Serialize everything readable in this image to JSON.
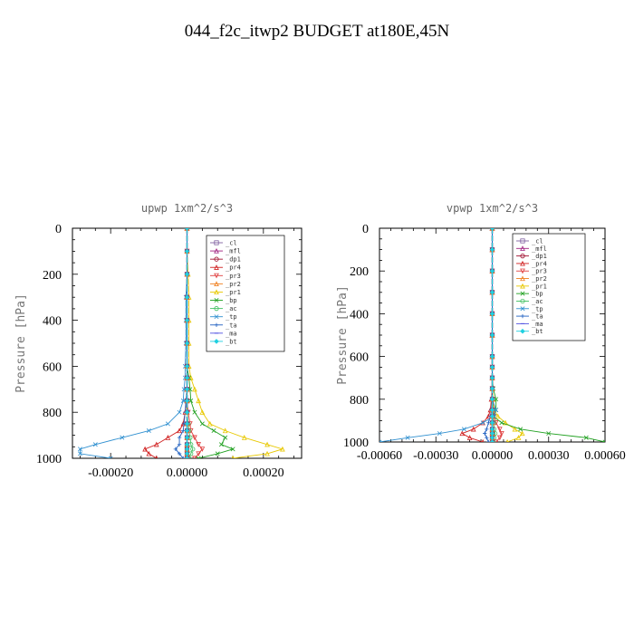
{
  "title": "044_f2c_itwp2  BUDGET at180E,45N",
  "chart_data": [
    {
      "type": "line",
      "title": "upwp   1xm^2/s^3",
      "ylabel": "Pressure [hPa]",
      "xlim": [
        -0.0003,
        0.0003
      ],
      "ylim": [
        1000,
        0
      ],
      "yticks": [
        0,
        200,
        400,
        600,
        800,
        1000
      ],
      "ytick_labels": [
        "0",
        "200",
        "400",
        "600",
        "800",
        "1000"
      ],
      "xticks": [
        -0.0002,
        0,
        0.0002
      ],
      "xtick_labels": [
        "-0.00020",
        "0.00000",
        "0.00020"
      ],
      "y": [
        0,
        100,
        200,
        300,
        400,
        500,
        600,
        650,
        700,
        750,
        800,
        850,
        880,
        910,
        940,
        960,
        980,
        1000
      ],
      "legend_position": "top-right",
      "series": [
        {
          "name": "_cl",
          "color": "#8060a0",
          "values": [
            0,
            0,
            0,
            0,
            0,
            0,
            0,
            0,
            0,
            0,
            0,
            0,
            0,
            0,
            0,
            0,
            0,
            0
          ]
        },
        {
          "name": "_mfl",
          "color": "#a02080",
          "values": [
            0,
            0,
            0,
            0,
            0,
            0,
            0,
            0,
            0,
            0,
            0,
            0,
            0,
            0,
            0,
            0,
            0,
            0
          ]
        },
        {
          "name": "_dp1",
          "color": "#a01030",
          "values": [
            0,
            0,
            0,
            0,
            0,
            0,
            0,
            0,
            0,
            0,
            0,
            0,
            0,
            0,
            0,
            0,
            0,
            0
          ]
        },
        {
          "name": "_pr4",
          "color": "#d02020",
          "values": [
            0,
            0,
            0,
            0,
            0,
            0,
            0,
            0,
            0,
            0,
            -5e-06,
            -1e-05,
            -2e-05,
            -5e-05,
            -8e-05,
            -0.00011,
            -0.0001,
            -8e-05
          ]
        },
        {
          "name": "_pr3",
          "color": "#e04040",
          "values": [
            0,
            0,
            0,
            0,
            0,
            0,
            0,
            0,
            0,
            0,
            3e-06,
            8e-06,
            1e-05,
            2e-05,
            3e-05,
            4e-05,
            3e-05,
            2e-05
          ]
        },
        {
          "name": "_pr2",
          "color": "#f08020",
          "values": [
            0,
            0,
            0,
            0,
            0,
            0,
            0,
            0,
            0,
            0,
            0,
            0,
            0,
            0,
            0,
            0,
            0,
            0
          ]
        },
        {
          "name": "_pr1",
          "color": "#e8c800",
          "values": [
            0,
            0,
            3e-06,
            5e-06,
            5e-06,
            5e-06,
            5e-06,
            1e-05,
            2e-05,
            3e-05,
            4e-05,
            6e-05,
            0.0001,
            0.00015,
            0.00021,
            0.00025,
            0.00021,
            0.00012
          ]
        },
        {
          "name": "_bp",
          "color": "#20a020",
          "values": [
            0,
            0,
            0,
            0,
            0,
            0,
            0,
            5e-06,
            8e-06,
            1e-05,
            2e-05,
            4e-05,
            7e-05,
            0.0001,
            9e-05,
            0.00012,
            8e-05,
            3e-05
          ]
        },
        {
          "name": "_ac",
          "color": "#40c060",
          "values": [
            0,
            0,
            0,
            0,
            0,
            0,
            0,
            0,
            0,
            0,
            0,
            3e-06,
            5e-06,
            8e-06,
            1e-05,
            1.5e-05,
            1e-05,
            5e-06
          ]
        },
        {
          "name": "_tp",
          "color": "#3090d0",
          "values": [
            0,
            0,
            0,
            -3e-06,
            -3e-06,
            -3e-06,
            -5e-06,
            -5e-06,
            -8e-06,
            -1e-05,
            -2e-05,
            -5e-05,
            -0.0001,
            -0.00017,
            -0.00024,
            -0.00028,
            -0.00028,
            -0.0002
          ]
        },
        {
          "name": "_ta",
          "color": "#2060c0",
          "values": [
            0,
            0,
            0,
            0,
            0,
            0,
            0,
            0,
            0,
            -3e-06,
            -5e-06,
            -8e-06,
            -1e-05,
            -2e-05,
            -2e-05,
            -3e-05,
            -2e-05,
            -1e-05
          ]
        },
        {
          "name": "_ma",
          "color": "#5050e0",
          "values": [
            0,
            0,
            0,
            0,
            0,
            0,
            0,
            0,
            0,
            0,
            0,
            0,
            0,
            0,
            0,
            0,
            0,
            0
          ]
        },
        {
          "name": "_bt",
          "color": "#20d0e0",
          "values": [
            0,
            0,
            0,
            0,
            0,
            0,
            0,
            0,
            0,
            0,
            0,
            0,
            0,
            0,
            0,
            0,
            0,
            0
          ]
        }
      ]
    },
    {
      "type": "line",
      "title": "vpwp   1xm^2/s^3",
      "ylabel": "Pressure [hPa]",
      "xlim": [
        -0.0006,
        0.0006
      ],
      "ylim": [
        1000,
        0
      ],
      "yticks": [
        0,
        200,
        400,
        600,
        800,
        1000
      ],
      "ytick_labels": [
        "0",
        "200",
        "400",
        "600",
        "800",
        "1000"
      ],
      "xticks": [
        -0.0006,
        -0.0003,
        0,
        0.0003,
        0.0006
      ],
      "xtick_labels": [
        "-0.00060",
        "-0.00030",
        "0.00000",
        "0.00030",
        "0.00060"
      ],
      "y": [
        0,
        100,
        200,
        300,
        400,
        500,
        600,
        650,
        700,
        750,
        800,
        850,
        880,
        910,
        940,
        960,
        980,
        1000
      ],
      "legend_position": "top-right",
      "series": [
        {
          "name": "_cl",
          "color": "#8060a0",
          "values": [
            0,
            0,
            0,
            0,
            0,
            0,
            0,
            0,
            0,
            0,
            0,
            0,
            0,
            0,
            0,
            0,
            0,
            0
          ]
        },
        {
          "name": "_mfl",
          "color": "#a02080",
          "values": [
            0,
            0,
            0,
            0,
            0,
            0,
            0,
            0,
            0,
            0,
            0,
            0,
            0,
            0,
            0,
            0,
            0,
            0
          ]
        },
        {
          "name": "_dp1",
          "color": "#a01030",
          "values": [
            0,
            0,
            0,
            0,
            0,
            0,
            0,
            0,
            0,
            0,
            0,
            0,
            0,
            0,
            0,
            0,
            0,
            0
          ]
        },
        {
          "name": "_pr4",
          "color": "#d02020",
          "values": [
            0,
            0,
            0,
            0,
            0,
            0,
            0,
            0,
            0,
            0,
            -5e-06,
            -1e-05,
            -2e-05,
            -5e-05,
            -0.0001,
            -0.00016,
            -0.00012,
            -5e-05
          ]
        },
        {
          "name": "_pr3",
          "color": "#e04040",
          "values": [
            0,
            0,
            0,
            0,
            0,
            0,
            0,
            0,
            0,
            0,
            3e-06,
            5e-06,
            1e-05,
            2e-05,
            4e-05,
            5e-05,
            4e-05,
            2e-05
          ]
        },
        {
          "name": "_pr2",
          "color": "#f08020",
          "values": [
            0,
            0,
            0,
            0,
            0,
            0,
            0,
            0,
            0,
            0,
            0,
            0,
            0,
            0,
            0,
            0,
            0,
            0
          ]
        },
        {
          "name": "_pr1",
          "color": "#e8c800",
          "values": [
            0,
            0,
            0,
            0,
            0,
            0,
            0,
            0,
            0,
            0,
            5e-06,
            1e-05,
            3e-05,
            7e-05,
            0.00012,
            0.00016,
            0.00014,
            8e-05
          ]
        },
        {
          "name": "_bp",
          "color": "#20a020",
          "values": [
            0,
            0,
            0,
            0,
            0,
            0,
            0,
            0,
            0,
            5e-06,
            2e-05,
            2e-05,
            5e-06,
            5e-05,
            0.00015,
            0.0003,
            0.0005,
            0.0006
          ]
        },
        {
          "name": "_ac",
          "color": "#40c060",
          "values": [
            0,
            0,
            0,
            0,
            0,
            0,
            0,
            0,
            0,
            0,
            0,
            3e-06,
            5e-06,
            8e-06,
            1e-05,
            1.5e-05,
            1e-05,
            5e-06
          ]
        },
        {
          "name": "_tp",
          "color": "#3090d0",
          "values": [
            0,
            0,
            0,
            0,
            0,
            0,
            0,
            0,
            0,
            0,
            0,
            2e-05,
            1e-05,
            -5e-05,
            -0.00015,
            -0.00028,
            -0.00045,
            -0.0006
          ]
        },
        {
          "name": "_ta",
          "color": "#2060c0",
          "values": [
            0,
            0,
            0,
            0,
            0,
            0,
            0,
            0,
            0,
            0,
            0,
            -5e-06,
            -1e-05,
            -2e-05,
            -3e-05,
            -4e-05,
            -3e-05,
            -2e-05
          ]
        },
        {
          "name": "_ma",
          "color": "#5050e0",
          "values": [
            0,
            0,
            0,
            0,
            0,
            0,
            0,
            0,
            0,
            0,
            0,
            0,
            0,
            0,
            0,
            0,
            0,
            0
          ]
        },
        {
          "name": "_bt",
          "color": "#20d0e0",
          "values": [
            0,
            0,
            0,
            0,
            0,
            0,
            0,
            0,
            0,
            0,
            0,
            0,
            0,
            0,
            0,
            0,
            0,
            0
          ]
        }
      ]
    }
  ]
}
